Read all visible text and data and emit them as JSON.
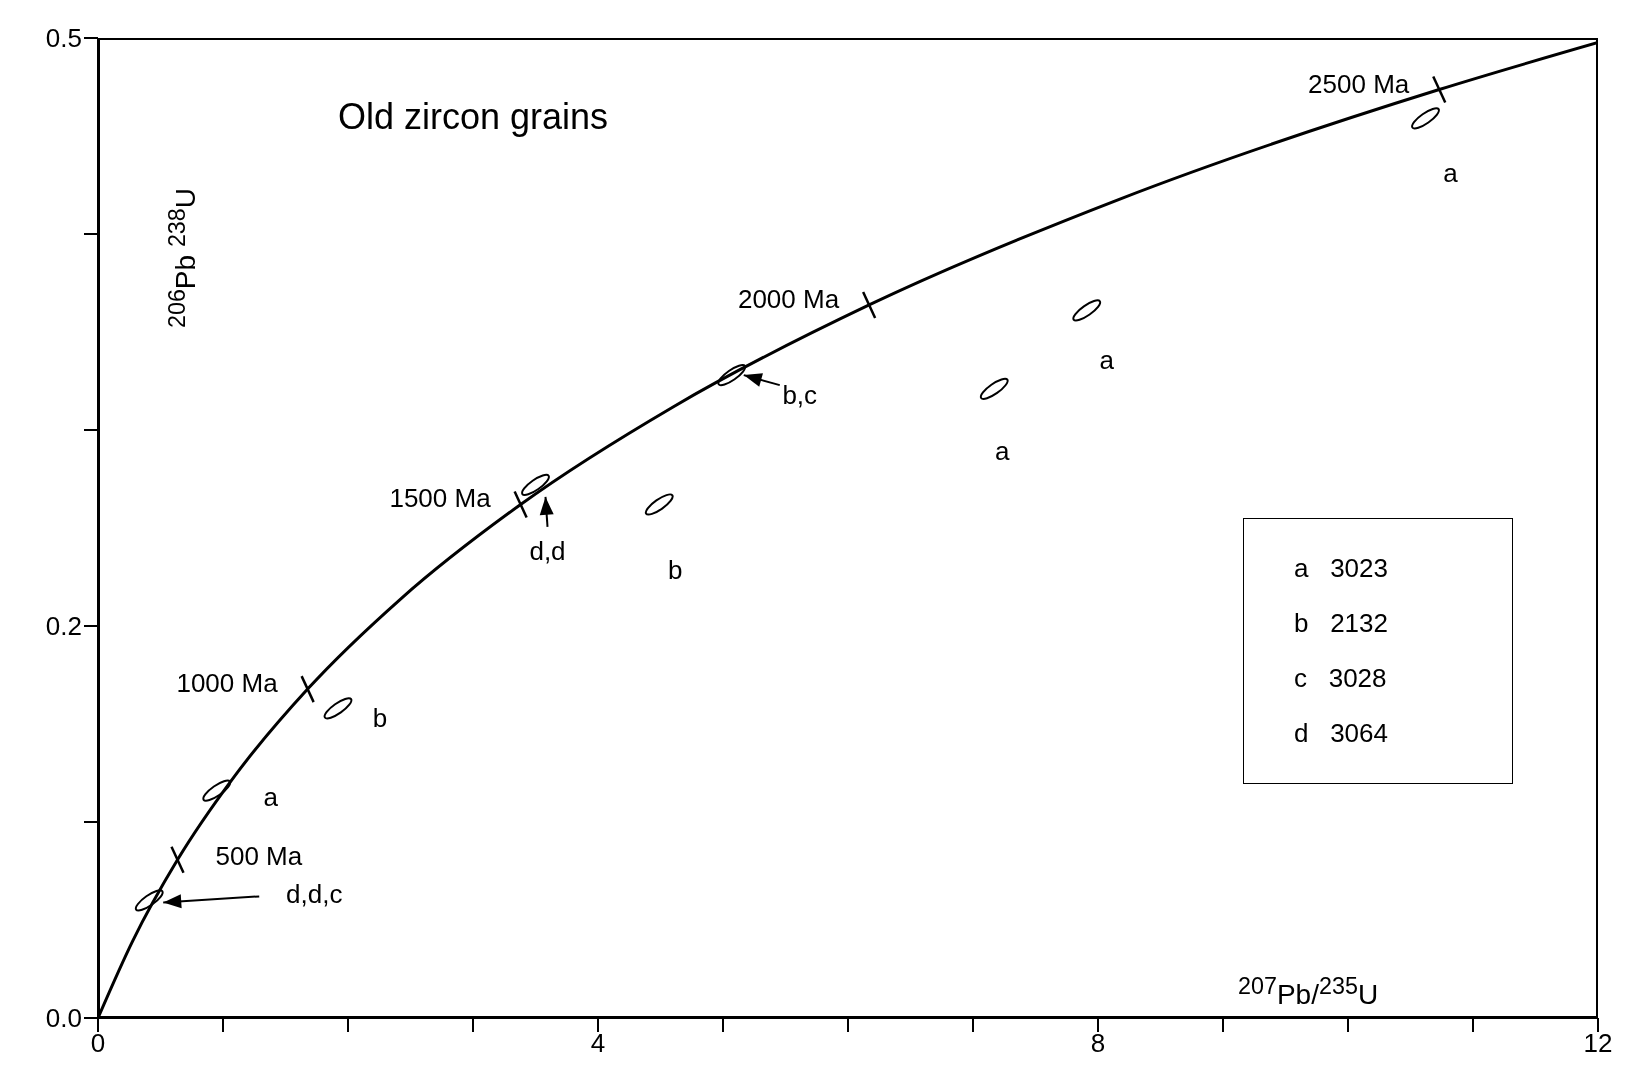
{
  "chart_data": {
    "type": "line",
    "title": "Old zircon grains",
    "xlabel": "$^{207}$Pb/$^{235}$U",
    "ylabel": "$^{206}$Pb $^{238}$U",
    "xlim": [
      0,
      12
    ],
    "xticks": [
      0,
      {
        "value": 1,
        "label": null
      },
      {
        "value": 2,
        "label": null
      },
      {
        "value": 3,
        "label": null
      },
      4,
      {
        "value": 5,
        "label": null
      },
      {
        "value": 6,
        "label": null
      },
      {
        "value": 7,
        "label": null
      },
      8,
      {
        "value": 9,
        "label": null
      },
      {
        "value": 10,
        "label": null
      },
      {
        "value": 11,
        "label": null
      },
      12
    ],
    "ylim": [
      0,
      0.5
    ],
    "yticks": [
      {
        "value": 0,
        "label": "0.0"
      },
      {
        "value": 0.1,
        "label": null
      },
      0.2,
      {
        "value": 0.3,
        "label": null
      },
      {
        "value": 0.4,
        "label": null
      },
      0.5
    ],
    "series": [
      {
        "color": "#000000",
        "x": [
          0,
          0.279,
          0.636,
          1.093,
          1.677,
          2.425,
          3.381,
          4.604,
          6.169,
          8.17,
          10.73,
          12
        ],
        "values": [
          0,
          0.0395,
          0.0807,
          0.1234,
          0.1678,
          0.214,
          0.262,
          0.3119,
          0.3638,
          0.4177,
          0.4737,
          0.4977
        ]
      },
      {
        "type": "scatter",
        "color": "#000000",
        "x": [
          10.62,
          7.91,
          7.17,
          5.07,
          4.49,
          3.5,
          1.92,
          0.95,
          0.41
        ],
        "values": [
          0.459,
          0.361,
          0.321,
          0.328,
          0.262,
          0.272,
          0.158,
          0.116,
          0.06
        ],
        "value_labels": [
          "a",
          "a",
          "a",
          "b,c",
          "b",
          "d,d",
          "b",
          "a",
          "d,d,c"
        ]
      }
    ],
    "annotations": [
      {
        "text": "500 Ma",
        "x": 0.636,
        "y": 0.0807
      },
      {
        "text": "1000 Ma",
        "x": 1.677,
        "y": 0.1678
      },
      {
        "text": "1500 Ma",
        "x": 3.381,
        "y": 0.262
      },
      {
        "text": "2000 Ma",
        "x": 6.169,
        "y": 0.3638
      },
      {
        "text": "2500 Ma",
        "x": 10.73,
        "y": 0.4737
      },
      "a   3023",
      "b   2132",
      "c   3028",
      "d   3064"
    ]
  }
}
